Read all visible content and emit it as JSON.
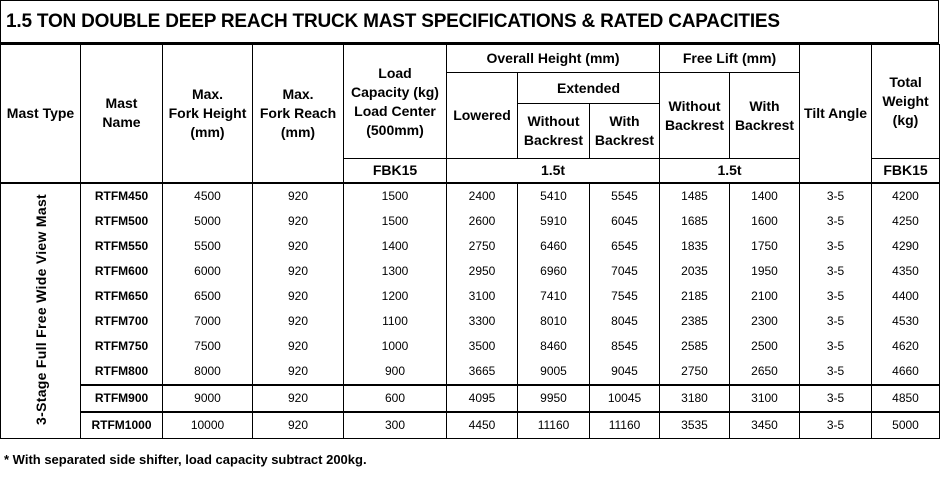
{
  "title": "1.5 TON DOUBLE DEEP REACH TRUCK MAST SPECIFICATIONS & RATED CAPACITIES",
  "headers": {
    "mast_type": "Mast Type",
    "mast_name_1": "Mast",
    "mast_name_2": "Name",
    "fork_height_1": "Max.",
    "fork_height_2": "Fork Height",
    "fork_height_3": "(mm)",
    "fork_reach_1": "Max.",
    "fork_reach_2": "Fork Reach",
    "fork_reach_3": "(mm)",
    "load_cap_1": "Load",
    "load_cap_2": "Capacity (kg)",
    "load_cap_3": "Load Center",
    "load_cap_4": "(500mm)",
    "overall_height": "Overall Height  (mm)",
    "lowered": "Lowered",
    "extended": "Extended",
    "without_backrest_1": "Without",
    "without_backrest_2": "Backrest",
    "with_backrest_1": "With",
    "with_backrest_2": "Backrest",
    "free_lift": "Free Lift (mm)",
    "fl_without_1": "Without",
    "fl_without_2": "Backrest",
    "fl_with_1": "With",
    "fl_with_2": "Backrest",
    "tilt_angle": "Tilt Angle",
    "total_weight_1": "Total",
    "total_weight_2": "Weight",
    "total_weight_3": "(kg)",
    "model_load": "FBK15",
    "model_height": "1.5t",
    "model_freelift": "1.5t",
    "model_weight": "FBK15"
  },
  "mast_type_label": "3-Stage Full Free  Wide View Mast",
  "rows": [
    {
      "name": "RTFM450",
      "fork_height": "4500",
      "fork_reach": "920",
      "capacity": "1500",
      "lowered": "2400",
      "ext_without": "5410",
      "ext_with": "5545",
      "fl_without": "1485",
      "fl_with": "1400",
      "tilt": "3-5",
      "weight": "4200"
    },
    {
      "name": "RTFM500",
      "fork_height": "5000",
      "fork_reach": "920",
      "capacity": "1500",
      "lowered": "2600",
      "ext_without": "5910",
      "ext_with": "6045",
      "fl_without": "1685",
      "fl_with": "1600",
      "tilt": "3-5",
      "weight": "4250"
    },
    {
      "name": "RTFM550",
      "fork_height": "5500",
      "fork_reach": "920",
      "capacity": "1400",
      "lowered": "2750",
      "ext_without": "6460",
      "ext_with": "6545",
      "fl_without": "1835",
      "fl_with": "1750",
      "tilt": "3-5",
      "weight": "4290"
    },
    {
      "name": "RTFM600",
      "fork_height": "6000",
      "fork_reach": "920",
      "capacity": "1300",
      "lowered": "2950",
      "ext_without": "6960",
      "ext_with": "7045",
      "fl_without": "2035",
      "fl_with": "1950",
      "tilt": "3-5",
      "weight": "4350"
    },
    {
      "name": "RTFM650",
      "fork_height": "6500",
      "fork_reach": "920",
      "capacity": "1200",
      "lowered": "3100",
      "ext_without": "7410",
      "ext_with": "7545",
      "fl_without": "2185",
      "fl_with": "2100",
      "tilt": "3-5",
      "weight": "4400"
    },
    {
      "name": "RTFM700",
      "fork_height": "7000",
      "fork_reach": "920",
      "capacity": "1100",
      "lowered": "3300",
      "ext_without": "8010",
      "ext_with": "8045",
      "fl_without": "2385",
      "fl_with": "2300",
      "tilt": "3-5",
      "weight": "4530"
    },
    {
      "name": "RTFM750",
      "fork_height": "7500",
      "fork_reach": "920",
      "capacity": "1000",
      "lowered": "3500",
      "ext_without": "8460",
      "ext_with": "8545",
      "fl_without": "2585",
      "fl_with": "2500",
      "tilt": "3-5",
      "weight": "4620"
    },
    {
      "name": "RTFM800",
      "fork_height": "8000",
      "fork_reach": "920",
      "capacity": "900",
      "lowered": "3665",
      "ext_without": "9005",
      "ext_with": "9045",
      "fl_without": "2750",
      "fl_with": "2650",
      "tilt": "3-5",
      "weight": "4660"
    },
    {
      "name": "RTFM900",
      "fork_height": "9000",
      "fork_reach": "920",
      "capacity": "600",
      "lowered": "4095",
      "ext_without": "9950",
      "ext_with": "10045",
      "fl_without": "3180",
      "fl_with": "3100",
      "tilt": "3-5",
      "weight": "4850"
    },
    {
      "name": "RTFM1000",
      "fork_height": "10000",
      "fork_reach": "920",
      "capacity": "300",
      "lowered": "4450",
      "ext_without": "11160",
      "ext_with": "11160",
      "fl_without": "3535",
      "fl_with": "3450",
      "tilt": "3-5",
      "weight": "5000"
    }
  ],
  "footnote": "* With separated side shifter, load capacity subtract 200kg."
}
